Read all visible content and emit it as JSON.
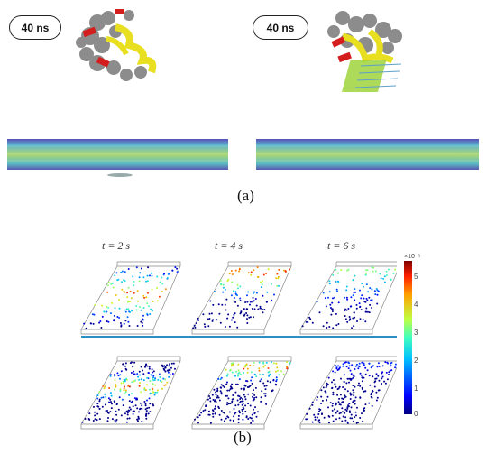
{
  "panel_a": {
    "label": "(a)",
    "left_timestamp": "40 ns",
    "right_timestamp": "40 ns"
  },
  "panel_b": {
    "label": "(b)",
    "time_labels": [
      "t = 2 s",
      "t = 4 s",
      "t = 6 s"
    ],
    "colorbar": {
      "exponent": "×10⁻⁵",
      "ticks": [
        "5",
        "4",
        "3",
        "2",
        "1",
        "0"
      ]
    }
  }
}
